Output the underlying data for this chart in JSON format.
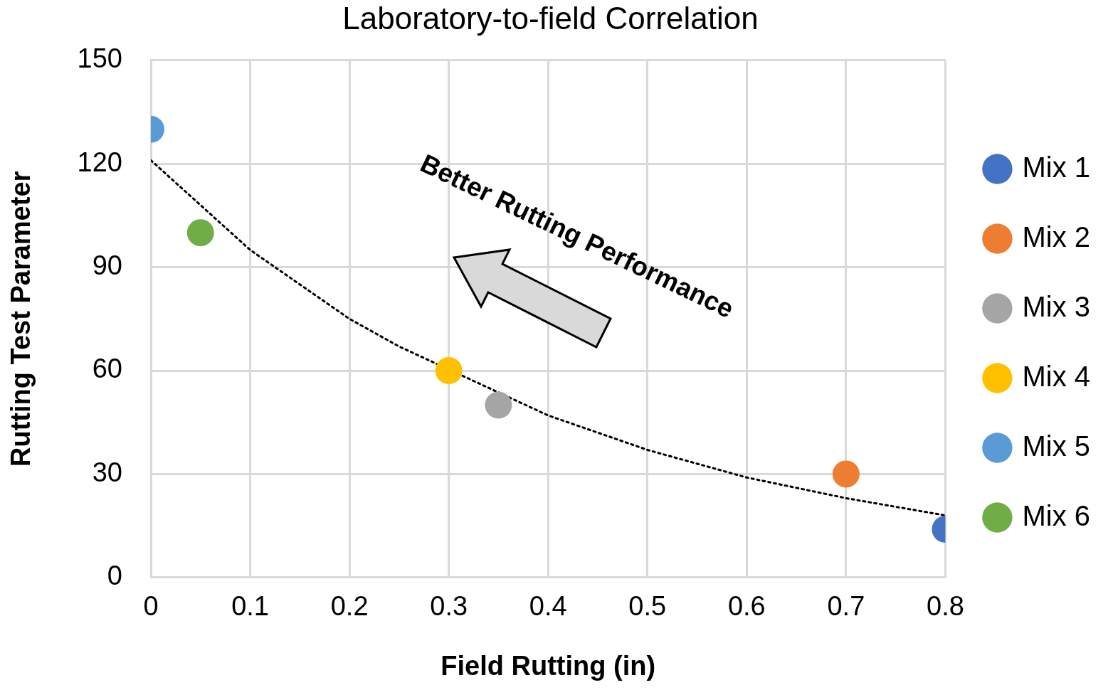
{
  "chart_data": {
    "type": "scatter",
    "title": "Laboratory-to-field Correlation",
    "xlabel": "Field Rutting (in)",
    "ylabel": "Rutting Test Parameter",
    "xlim": [
      0,
      0.8
    ],
    "xticks": [
      0,
      0.1,
      0.2,
      0.3,
      0.4,
      0.5,
      0.6,
      0.7,
      0.8
    ],
    "ylim": [
      0,
      150
    ],
    "yticks": [
      0,
      30,
      60,
      90,
      120,
      150
    ],
    "grid": true,
    "legend": "right",
    "marker": "circle",
    "annotations": [
      "Better Rutting Performance"
    ],
    "series": [
      {
        "name": "Mix 1",
        "color": "#4472c4",
        "x": [
          0.8
        ],
        "values": [
          14
        ]
      },
      {
        "name": "Mix 2",
        "color": "#ed7d31",
        "x": [
          0.7
        ],
        "values": [
          30
        ]
      },
      {
        "name": "Mix 3",
        "color": "#a5a5a5",
        "x": [
          0.35
        ],
        "values": [
          50
        ]
      },
      {
        "name": "Mix 4",
        "color": "#ffc000",
        "x": [
          0.3
        ],
        "values": [
          60
        ]
      },
      {
        "name": "Mix 5",
        "color": "#5b9bd5",
        "x": [
          0
        ],
        "values": [
          130
        ]
      },
      {
        "name": "Mix 6",
        "color": "#70ad47",
        "x": [
          0.05
        ],
        "values": [
          100
        ]
      },
      {
        "type": "line",
        "color": "#000000",
        "line_style": "dotted",
        "marker": "none",
        "x": [
          0,
          0.1,
          0.2,
          0.25,
          0.4,
          0.5,
          0.6,
          0.7,
          0.8
        ],
        "values": [
          121,
          95,
          75,
          67,
          47,
          37,
          29,
          23,
          18
        ]
      }
    ]
  }
}
